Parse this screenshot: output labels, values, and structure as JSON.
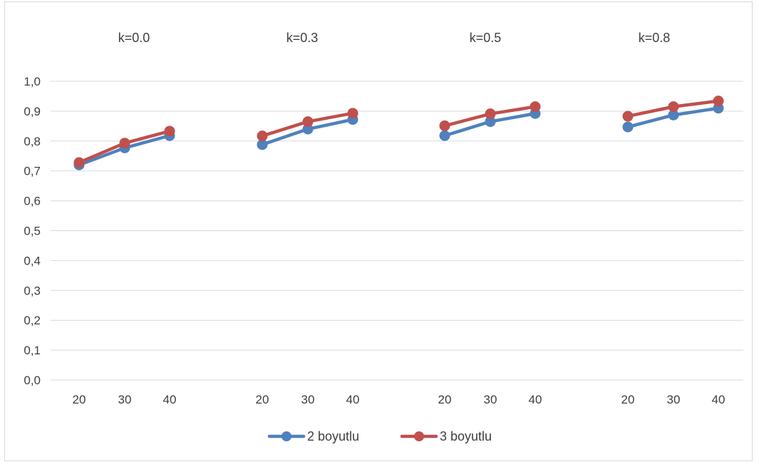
{
  "chart_data": {
    "type": "line",
    "ylim": [
      0,
      1.0
    ],
    "y_ticks": [
      "0,0",
      "0,1",
      "0,2",
      "0,3",
      "0,4",
      "0,5",
      "0,6",
      "0,7",
      "0,8",
      "0,9",
      "1,0"
    ],
    "grid": true,
    "legend_position": "bottom",
    "panels": [
      {
        "title": "k=0.0",
        "x": [
          "20",
          "30",
          "40"
        ],
        "series": [
          {
            "name": "2 boyutlu",
            "values": [
              0.72,
              0.777,
              0.818
            ]
          },
          {
            "name": "3 boyutlu",
            "values": [
              0.728,
              0.793,
              0.833
            ]
          }
        ]
      },
      {
        "title": "k=0.3",
        "x": [
          "20",
          "30",
          "40"
        ],
        "series": [
          {
            "name": "2 boyutlu",
            "values": [
              0.788,
              0.84,
              0.872
            ]
          },
          {
            "name": "3 boyutlu",
            "values": [
              0.817,
              0.865,
              0.893
            ]
          }
        ]
      },
      {
        "title": "k=0.5",
        "x": [
          "20",
          "30",
          "40"
        ],
        "series": [
          {
            "name": "2 boyutlu",
            "values": [
              0.818,
              0.865,
              0.892
            ]
          },
          {
            "name": "3 boyutlu",
            "values": [
              0.851,
              0.891,
              0.915
            ]
          }
        ]
      },
      {
        "title": "k=0.8",
        "x": [
          "20",
          "30",
          "40"
        ],
        "series": [
          {
            "name": "2 boyutlu",
            "values": [
              0.847,
              0.887,
              0.91
            ]
          },
          {
            "name": "3 boyutlu",
            "values": [
              0.883,
              0.915,
              0.934
            ]
          }
        ]
      }
    ],
    "legend": [
      {
        "name": "2 boyutlu",
        "color": "#4f81bd"
      },
      {
        "name": "3 boyutlu",
        "color": "#c0504d"
      }
    ]
  }
}
